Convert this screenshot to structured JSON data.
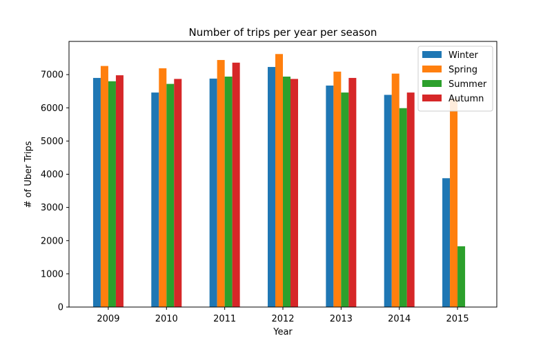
{
  "chart_data": {
    "type": "bar",
    "title": "Number of trips per year per season",
    "xlabel": "Year",
    "ylabel": "# of Uber Trips",
    "categories": [
      "2009",
      "2010",
      "2011",
      "2012",
      "2013",
      "2014",
      "2015"
    ],
    "ylim": [
      0,
      8000
    ],
    "yticks": [
      0,
      1000,
      2000,
      3000,
      4000,
      5000,
      6000,
      7000
    ],
    "grid": false,
    "legend_position": "top-right",
    "series": [
      {
        "name": "Winter",
        "color": "#1f77b4",
        "values": [
          6900,
          6460,
          6880,
          7230,
          6670,
          6390,
          3880
        ]
      },
      {
        "name": "Spring",
        "color": "#ff7f0e",
        "values": [
          7260,
          7190,
          7440,
          7620,
          7090,
          7030,
          6270
        ]
      },
      {
        "name": "Summer",
        "color": "#2ca02c",
        "values": [
          6800,
          6720,
          6940,
          6940,
          6460,
          5990,
          1830
        ]
      },
      {
        "name": "Autumn",
        "color": "#d62728",
        "values": [
          6980,
          6870,
          7360,
          6870,
          6900,
          6460,
          null
        ]
      }
    ]
  }
}
